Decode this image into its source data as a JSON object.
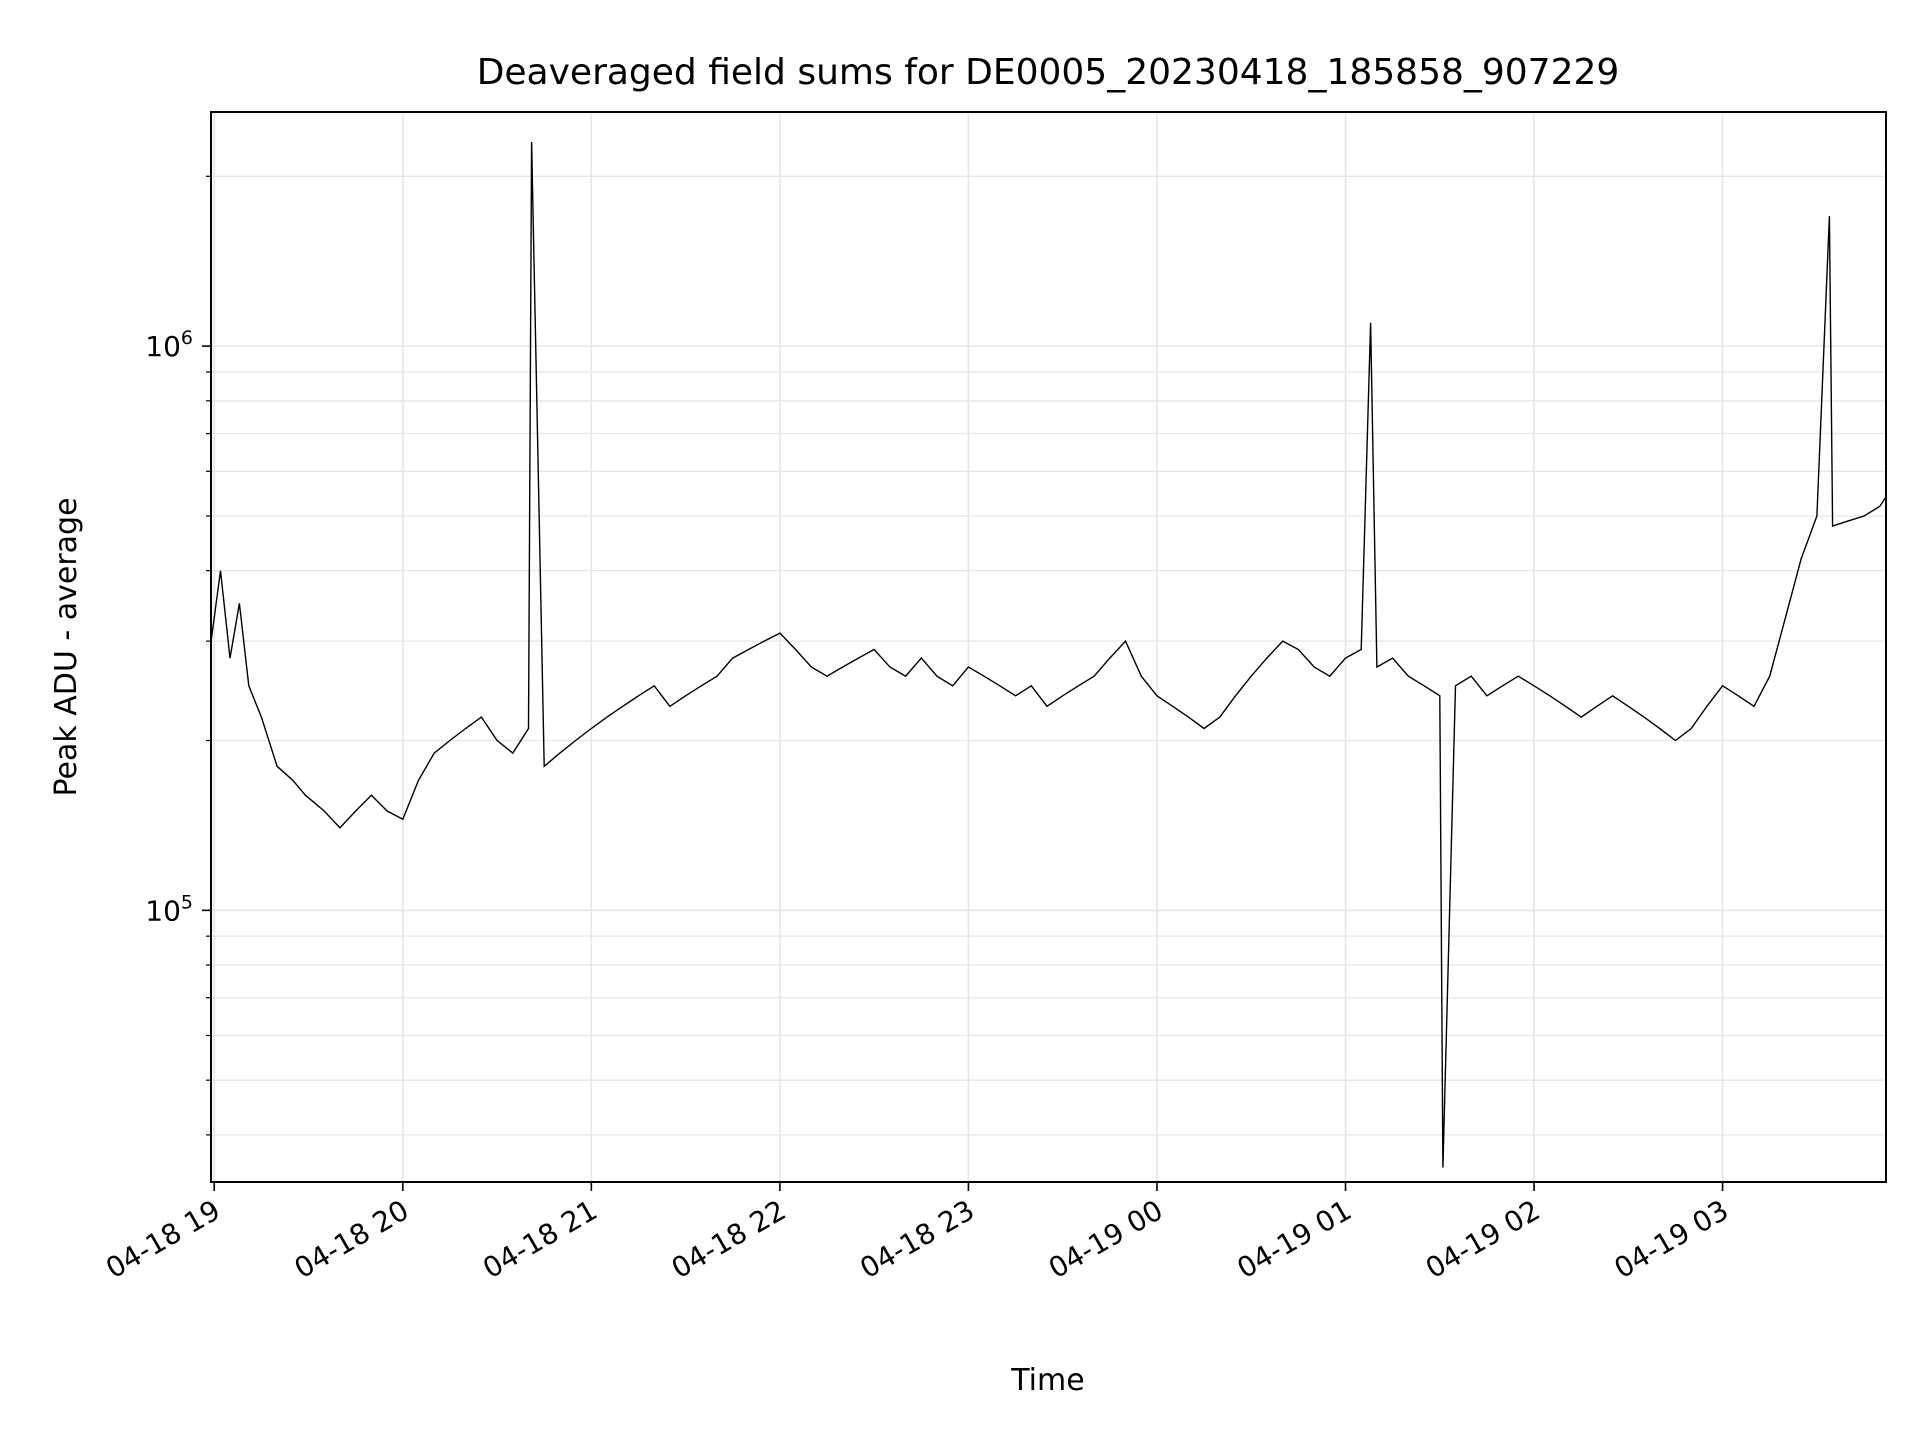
{
  "chart_data": {
    "type": "line",
    "title": "Deaveraged field sums for DE0005_20230418_185858_907229",
    "xlabel": "Time",
    "ylabel": "Peak ADU - average",
    "yscale": "log",
    "grid": true,
    "legend": "none",
    "line_color": "#000000",
    "grid_color": "#e6e6e6",
    "xlim": [
      "2023-04-18 18:58:58",
      "2023-04-19 03:52:00"
    ],
    "ylim": [
      33000,
      2600000
    ],
    "x_ticks": [
      {
        "t": "2023-04-18 19:00",
        "label": "04-18 19"
      },
      {
        "t": "2023-04-18 20:00",
        "label": "04-18 20"
      },
      {
        "t": "2023-04-18 21:00",
        "label": "04-18 21"
      },
      {
        "t": "2023-04-18 22:00",
        "label": "04-18 22"
      },
      {
        "t": "2023-04-18 23:00",
        "label": "04-18 23"
      },
      {
        "t": "2023-04-19 00:00",
        "label": "04-19 00"
      },
      {
        "t": "2023-04-19 01:00",
        "label": "04-19 01"
      },
      {
        "t": "2023-04-19 02:00",
        "label": "04-19 02"
      },
      {
        "t": "2023-04-19 03:00",
        "label": "04-19 03"
      }
    ],
    "y_ticks": [
      {
        "value": 100000,
        "base": "10",
        "exp": "5"
      },
      {
        "value": 1000000,
        "base": "10",
        "exp": "6"
      }
    ],
    "series": [
      {
        "x": [
          "2023-04-18 18:59",
          "2023-04-18 19:02",
          "2023-04-18 19:05",
          "2023-04-18 19:08",
          "2023-04-18 19:11",
          "2023-04-18 19:15",
          "2023-04-18 19:20",
          "2023-04-18 19:25",
          "2023-04-18 19:29",
          "2023-04-18 19:35",
          "2023-04-18 19:40",
          "2023-04-18 19:45",
          "2023-04-18 19:50",
          "2023-04-18 19:55",
          "2023-04-18 20:00",
          "2023-04-18 20:05",
          "2023-04-18 20:10",
          "2023-04-18 20:15",
          "2023-04-18 20:20",
          "2023-04-18 20:25",
          "2023-04-18 20:30",
          "2023-04-18 20:35",
          "2023-04-18 20:40",
          "2023-04-18 20:41",
          "2023-04-18 20:45",
          "2023-04-18 20:50",
          "2023-04-18 20:55",
          "2023-04-18 21:00",
          "2023-04-18 21:05",
          "2023-04-18 21:10",
          "2023-04-18 21:15",
          "2023-04-18 21:20",
          "2023-04-18 21:25",
          "2023-04-18 21:30",
          "2023-04-18 21:35",
          "2023-04-18 21:40",
          "2023-04-18 21:45",
          "2023-04-18 21:50",
          "2023-04-18 21:55",
          "2023-04-18 22:00",
          "2023-04-18 22:05",
          "2023-04-18 22:10",
          "2023-04-18 22:15",
          "2023-04-18 22:20",
          "2023-04-18 22:25",
          "2023-04-18 22:30",
          "2023-04-18 22:35",
          "2023-04-18 22:40",
          "2023-04-18 22:45",
          "2023-04-18 22:50",
          "2023-04-18 22:55",
          "2023-04-18 23:00",
          "2023-04-18 23:05",
          "2023-04-18 23:10",
          "2023-04-18 23:15",
          "2023-04-18 23:20",
          "2023-04-18 23:25",
          "2023-04-18 23:30",
          "2023-04-18 23:35",
          "2023-04-18 23:40",
          "2023-04-18 23:45",
          "2023-04-18 23:50",
          "2023-04-18 23:55",
          "2023-04-19 00:00",
          "2023-04-19 00:05",
          "2023-04-19 00:10",
          "2023-04-19 00:15",
          "2023-04-19 00:20",
          "2023-04-19 00:25",
          "2023-04-19 00:30",
          "2023-04-19 00:35",
          "2023-04-19 00:40",
          "2023-04-19 00:45",
          "2023-04-19 00:50",
          "2023-04-19 00:55",
          "2023-04-19 01:00",
          "2023-04-19 01:05",
          "2023-04-19 01:08",
          "2023-04-19 01:10",
          "2023-04-19 01:15",
          "2023-04-19 01:20",
          "2023-04-19 01:25",
          "2023-04-19 01:30",
          "2023-04-19 01:31",
          "2023-04-19 01:35",
          "2023-04-19 01:40",
          "2023-04-19 01:45",
          "2023-04-19 01:50",
          "2023-04-19 01:55",
          "2023-04-19 02:00",
          "2023-04-19 02:05",
          "2023-04-19 02:10",
          "2023-04-19 02:15",
          "2023-04-19 02:20",
          "2023-04-19 02:25",
          "2023-04-19 02:30",
          "2023-04-19 02:35",
          "2023-04-19 02:40",
          "2023-04-19 02:45",
          "2023-04-19 02:50",
          "2023-04-19 02:55",
          "2023-04-19 03:00",
          "2023-04-19 03:05",
          "2023-04-19 03:10",
          "2023-04-19 03:15",
          "2023-04-19 03:20",
          "2023-04-19 03:25",
          "2023-04-19 03:30",
          "2023-04-19 03:34",
          "2023-04-19 03:35",
          "2023-04-19 03:40",
          "2023-04-19 03:45",
          "2023-04-19 03:50",
          "2023-04-19 03:52"
        ],
        "y": [
          300000,
          400000,
          280000,
          350000,
          250000,
          220000,
          180000,
          170000,
          160000,
          150000,
          140000,
          150000,
          160000,
          150000,
          145000,
          170000,
          190000,
          200000,
          210000,
          220000,
          200000,
          190000,
          210000,
          2300000,
          180000,
          190000,
          200000,
          210000,
          220000,
          230000,
          240000,
          250000,
          230000,
          240000,
          250000,
          260000,
          280000,
          290000,
          300000,
          310000,
          290000,
          270000,
          260000,
          270000,
          280000,
          290000,
          270000,
          260000,
          280000,
          260000,
          250000,
          270000,
          260000,
          250000,
          240000,
          250000,
          230000,
          240000,
          250000,
          260000,
          280000,
          300000,
          260000,
          240000,
          230000,
          220000,
          210000,
          220000,
          240000,
          260000,
          280000,
          300000,
          290000,
          270000,
          260000,
          280000,
          290000,
          1100000,
          270000,
          280000,
          260000,
          250000,
          240000,
          35000,
          250000,
          260000,
          240000,
          250000,
          260000,
          250000,
          240000,
          230000,
          220000,
          230000,
          240000,
          230000,
          220000,
          210000,
          200000,
          210000,
          230000,
          250000,
          240000,
          230000,
          260000,
          330000,
          420000,
          500000,
          1700000,
          480000,
          490000,
          500000,
          520000,
          540000
        ]
      }
    ]
  }
}
